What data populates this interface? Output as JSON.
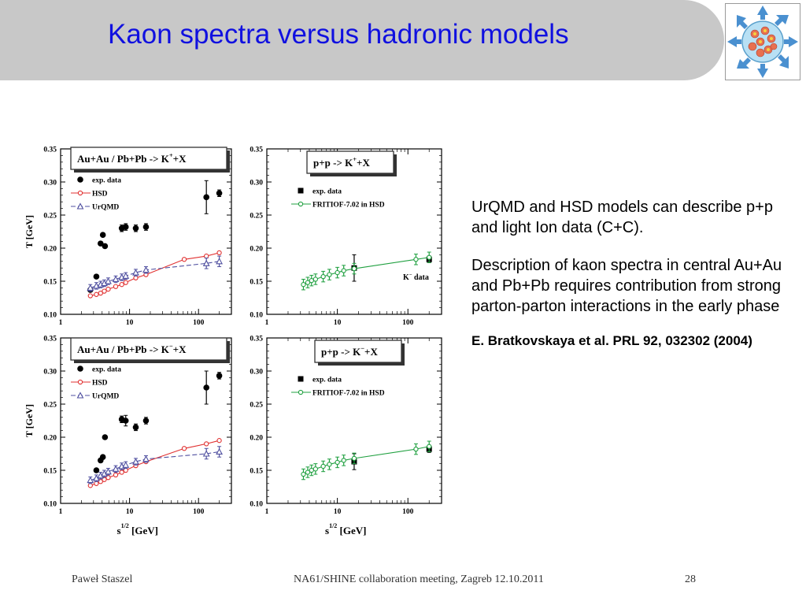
{
  "slide": {
    "title": "Kaon spectra versus hadronic models",
    "text": {
      "p1": "UrQMD and HSD models can describe p+p and light Ion data (C+C).",
      "p2": "Description of  kaon spectra in central Au+Au and Pb+Pb requires contribution from strong parton-parton interactions in the early phase",
      "reference": "E. Bratkovskaya et al. PRL 92, 032302 (2004)"
    },
    "footer": {
      "author": "Paweł Staszel",
      "event": "NA61/SHINE collaboration meeting, Zagreb 12.10.2011",
      "page": "28"
    },
    "axes": {
      "ylabel": "T [GeV]",
      "xlabel_main": "s",
      "xlabel_sup": "1/2",
      "xlabel_unit": "[GeV]",
      "yticks": [
        "0.10",
        "0.15",
        "0.20",
        "0.25",
        "0.30",
        "0.35"
      ],
      "xticks": [
        "1",
        "10",
        "100"
      ]
    }
  },
  "colors": {
    "title": "#1010e0",
    "hsd": "#e03030",
    "urqmd": "#5050a0",
    "fritiof": "#20a040",
    "data": "#000000"
  },
  "chart_data": [
    {
      "type": "scatter",
      "title": "Au+Au / Pb+Pb  -> K",
      "title_sup": "+",
      "title_end": "+X",
      "xscale": "log",
      "xlim": [
        1,
        300
      ],
      "ylim": [
        0.1,
        0.35
      ],
      "legend": [
        "exp. data",
        "HSD",
        "UrQMD"
      ],
      "series": [
        {
          "name": "exp. data",
          "marker": "circle",
          "x": [
            2.7,
            3.3,
            3.8,
            4.1,
            4.4,
            7.7,
            8.8,
            12.3,
            17.3,
            130,
            200
          ],
          "y": [
            0.137,
            0.157,
            0.207,
            0.22,
            0.203,
            0.23,
            0.232,
            0.23,
            0.232,
            0.277,
            0.283
          ],
          "err": [
            0,
            0,
            0,
            0,
            0,
            0.005,
            0.005,
            0.005,
            0.005,
            0.025,
            0.005
          ]
        },
        {
          "name": "HSD",
          "marker": "open-circle",
          "x": [
            2.7,
            3.3,
            3.8,
            4.3,
            4.9,
            6.3,
            7.7,
            8.8,
            12.3,
            17.3,
            62,
            130,
            200
          ],
          "y": [
            0.128,
            0.13,
            0.132,
            0.135,
            0.138,
            0.142,
            0.145,
            0.148,
            0.155,
            0.16,
            0.183,
            0.188,
            0.193
          ]
        },
        {
          "name": "UrQMD",
          "marker": "open-triangle",
          "x": [
            2.7,
            3.3,
            3.8,
            4.3,
            4.9,
            6.3,
            7.7,
            8.8,
            12.3,
            17.3,
            130,
            200
          ],
          "y": [
            0.14,
            0.143,
            0.145,
            0.147,
            0.15,
            0.153,
            0.156,
            0.158,
            0.163,
            0.167,
            0.177,
            0.18
          ],
          "err": [
            0.005,
            0.005,
            0.005,
            0.005,
            0.005,
            0.005,
            0.005,
            0.005,
            0.005,
            0.005,
            0.008,
            0.008
          ]
        }
      ]
    },
    {
      "type": "scatter",
      "title": "p+p -> K",
      "title_sup": "+",
      "title_end": "+X",
      "xscale": "log",
      "xlim": [
        1,
        300
      ],
      "ylim": [
        0.1,
        0.35
      ],
      "legend": [
        "exp. data",
        "FRITIOF-7.02 in HSD"
      ],
      "annotation": "K",
      "annotation_sup": "−",
      "annotation_end": " data",
      "series": [
        {
          "name": "exp. data",
          "marker": "square",
          "x": [
            17.3,
            200
          ],
          "y": [
            0.17,
            0.183
          ],
          "err": [
            0.02,
            0.005
          ]
        },
        {
          "name": "FRITIOF-7.02 in HSD",
          "marker": "open-circle",
          "x": [
            3.3,
            3.8,
            4.3,
            4.9,
            6.3,
            7.7,
            10,
            12.3,
            17.3,
            130,
            200
          ],
          "y": [
            0.145,
            0.148,
            0.151,
            0.153,
            0.157,
            0.16,
            0.163,
            0.166,
            0.169,
            0.183,
            0.186
          ],
          "err": [
            0.008,
            0.008,
            0.008,
            0.008,
            0.008,
            0.008,
            0.008,
            0.008,
            0.008,
            0.008,
            0.008
          ]
        }
      ]
    },
    {
      "type": "scatter",
      "title": "Au+Au / Pb+Pb  -> K",
      "title_sup": "−",
      "title_end": "+X",
      "xscale": "log",
      "xlim": [
        1,
        300
      ],
      "ylim": [
        0.1,
        0.35
      ],
      "legend": [
        "exp. data",
        "HSD",
        "UrQMD"
      ],
      "series": [
        {
          "name": "exp. data",
          "marker": "circle",
          "x": [
            3.3,
            3.8,
            4.1,
            4.4,
            7.7,
            8.8,
            12.3,
            17.3,
            130,
            200
          ],
          "y": [
            0.15,
            0.165,
            0.17,
            0.2,
            0.227,
            0.225,
            0.215,
            0.225,
            0.275,
            0.293
          ],
          "err": [
            0,
            0,
            0,
            0,
            0.005,
            0.008,
            0.005,
            0.005,
            0.025,
            0.005
          ]
        },
        {
          "name": "HSD",
          "marker": "open-circle",
          "x": [
            2.7,
            3.3,
            3.8,
            4.3,
            4.9,
            6.3,
            7.7,
            8.8,
            12.3,
            17.3,
            62,
            130,
            200
          ],
          "y": [
            0.127,
            0.13,
            0.133,
            0.136,
            0.139,
            0.143,
            0.147,
            0.15,
            0.157,
            0.163,
            0.183,
            0.19,
            0.195
          ]
        },
        {
          "name": "UrQMD",
          "marker": "open-triangle",
          "x": [
            2.7,
            3.3,
            3.8,
            4.3,
            4.9,
            6.3,
            7.7,
            8.8,
            12.3,
            17.3,
            130,
            200
          ],
          "y": [
            0.135,
            0.138,
            0.142,
            0.145,
            0.148,
            0.152,
            0.156,
            0.158,
            0.163,
            0.167,
            0.175,
            0.178
          ],
          "err": [
            0.005,
            0.005,
            0.005,
            0.005,
            0.005,
            0.005,
            0.005,
            0.005,
            0.005,
            0.005,
            0.008,
            0.008
          ]
        }
      ]
    },
    {
      "type": "scatter",
      "title": "p+p -> K",
      "title_sup": "−",
      "title_end": "+X",
      "xscale": "log",
      "xlim": [
        1,
        300
      ],
      "ylim": [
        0.1,
        0.35
      ],
      "legend": [
        "exp. data",
        "FRITIOF-7.02 in HSD"
      ],
      "series": [
        {
          "name": "exp. data",
          "marker": "square",
          "x": [
            17.3,
            200
          ],
          "y": [
            0.163,
            0.182
          ],
          "err": [
            0.012,
            0.005
          ]
        },
        {
          "name": "FRITIOF-7.02 in HSD",
          "marker": "open-circle",
          "x": [
            3.3,
            3.8,
            4.3,
            4.9,
            6.3,
            7.7,
            10,
            12.3,
            17.3,
            130,
            200
          ],
          "y": [
            0.144,
            0.147,
            0.15,
            0.152,
            0.156,
            0.159,
            0.162,
            0.165,
            0.168,
            0.182,
            0.186
          ],
          "err": [
            0.008,
            0.008,
            0.008,
            0.008,
            0.008,
            0.008,
            0.008,
            0.008,
            0.008,
            0.008,
            0.008
          ]
        }
      ]
    }
  ]
}
